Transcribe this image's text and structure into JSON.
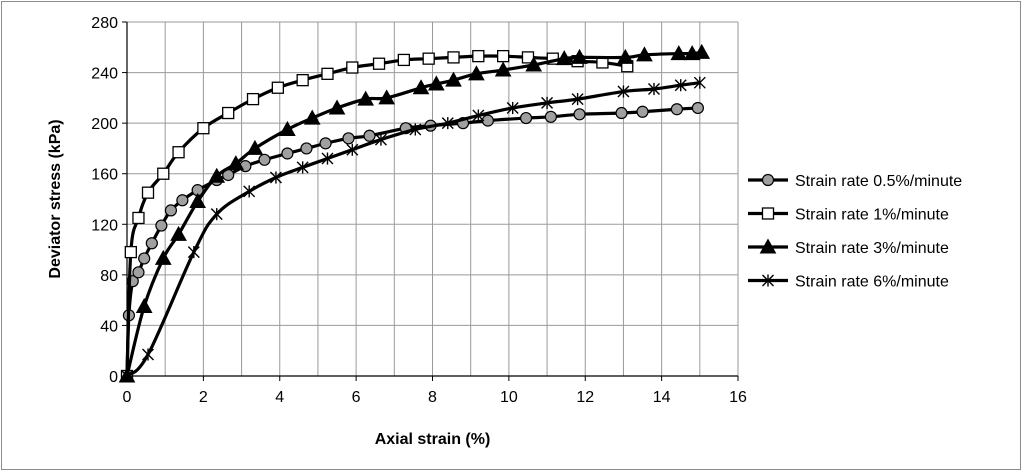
{
  "chart_data": {
    "type": "line",
    "title": "",
    "xlabel": "Axial strain (%)",
    "ylabel": "Deviator stress (kPa)",
    "xlim": [
      0,
      16
    ],
    "ylim": [
      0,
      280
    ],
    "xticks": [
      0,
      2,
      4,
      6,
      8,
      10,
      12,
      14,
      16
    ],
    "yticks": [
      0,
      40,
      80,
      120,
      160,
      200,
      240,
      280
    ],
    "grid": true,
    "legend_position": "right",
    "series": [
      {
        "name": "Strain rate 0.5%/minute",
        "marker": "circle",
        "color": "#000000",
        "marker_fill": "#a0a0a0",
        "x": [
          0,
          0.05,
          0.15,
          0.3,
          0.45,
          0.65,
          0.9,
          1.15,
          1.45,
          1.85,
          2.35,
          2.65,
          3.1,
          3.6,
          4.2,
          4.7,
          5.2,
          5.8,
          6.35,
          7.3,
          7.95,
          8.8,
          9.45,
          10.45,
          11.1,
          11.85,
          12.95,
          13.5,
          14.4,
          14.95
        ],
        "y": [
          0,
          48,
          75,
          82,
          93,
          105,
          119,
          131,
          139,
          147,
          155,
          159,
          166,
          171,
          176,
          180,
          184,
          188,
          190,
          196,
          198,
          200,
          202,
          204,
          205,
          207,
          208,
          209,
          211,
          212
        ]
      },
      {
        "name": "Strain rate 1%/minute",
        "marker": "square",
        "color": "#000000",
        "marker_fill": "#ffffff",
        "x": [
          0,
          0.1,
          0.3,
          0.55,
          0.95,
          1.35,
          2.0,
          2.65,
          3.3,
          3.95,
          4.6,
          5.25,
          5.9,
          6.6,
          7.25,
          7.9,
          8.55,
          9.2,
          9.85,
          10.5,
          11.15,
          11.8,
          12.45,
          13.1
        ],
        "y": [
          0,
          98,
          125,
          145,
          160,
          177,
          196,
          208,
          219,
          228,
          234,
          239,
          244,
          247,
          250,
          251,
          252,
          253,
          253,
          252,
          251,
          249,
          248,
          245
        ]
      },
      {
        "name": "Strain rate 3%/minute",
        "marker": "triangle",
        "color": "#000000",
        "marker_fill": "#000000",
        "x": [
          0,
          0.45,
          0.95,
          1.35,
          1.85,
          2.35,
          2.85,
          3.35,
          4.2,
          4.85,
          5.5,
          6.25,
          6.8,
          7.7,
          8.1,
          8.55,
          9.15,
          9.85,
          10.65,
          11.45,
          11.85,
          13.05,
          13.55,
          14.45,
          14.8,
          15.05
        ],
        "y": [
          0,
          55,
          93,
          112,
          138,
          158,
          168,
          180,
          195,
          204,
          212,
          219,
          220,
          228,
          231,
          234,
          239,
          242,
          246,
          251,
          252,
          252,
          254,
          255,
          255,
          256
        ]
      },
      {
        "name": "Strain rate 6%/minute",
        "marker": "asterisk",
        "color": "#000000",
        "marker_fill": "none",
        "x": [
          0,
          0.55,
          1.75,
          2.35,
          3.2,
          3.9,
          4.6,
          5.25,
          5.9,
          6.65,
          7.55,
          8.4,
          9.2,
          10.1,
          11.0,
          11.8,
          13.0,
          13.8,
          14.5,
          15.0
        ],
        "y": [
          0,
          17,
          98,
          128,
          146,
          157,
          165,
          172,
          179,
          187,
          195,
          200,
          206,
          212,
          216,
          219,
          225,
          227,
          230,
          232
        ]
      }
    ]
  }
}
